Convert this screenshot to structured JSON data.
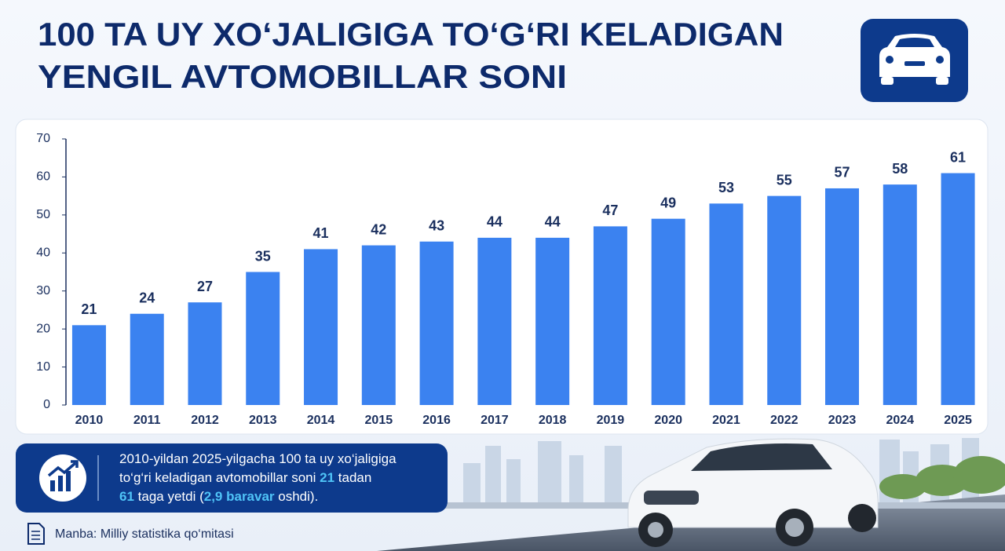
{
  "chart_data": {
    "type": "bar",
    "title": [
      "100 TA UY XO‘JALIGIGA TO‘G‘RI KELADIGAN",
      "YENGIL AVTOMOBILLAR SONI"
    ],
    "categories": [
      "2010",
      "2011",
      "2012",
      "2013",
      "2014",
      "2015",
      "2016",
      "2017",
      "2018",
      "2019",
      "2020",
      "2021",
      "2022",
      "2023",
      "2024",
      "2025"
    ],
    "values": [
      21,
      24,
      27,
      35,
      41,
      42,
      43,
      44,
      44,
      47,
      49,
      53,
      55,
      57,
      58,
      61
    ],
    "color": "#3b82f0",
    "ylim": [
      0,
      70
    ],
    "yticks": [
      0,
      10,
      20,
      30,
      40,
      50,
      60,
      70
    ],
    "grid": false,
    "note": [
      [
        {
          "text": "2010-yildan 2025-yilgacha 100 ta uy xo‘jaligiga",
          "highlight": false
        }
      ],
      [
        {
          "text": "to‘g‘ri keladigan avtomobillar soni ",
          "highlight": false
        },
        {
          "text": "21",
          "highlight": true
        },
        {
          "text": " tadan",
          "highlight": false
        }
      ],
      [
        {
          "text": "61",
          "highlight": true
        },
        {
          "text": " taga yetdi (",
          "highlight": false
        },
        {
          "text": "2,9 baravar",
          "highlight": true
        },
        {
          "text": " oshdi).",
          "highlight": false
        }
      ]
    ],
    "source": "Manba: Milliy statistika qo‘mitasi"
  }
}
